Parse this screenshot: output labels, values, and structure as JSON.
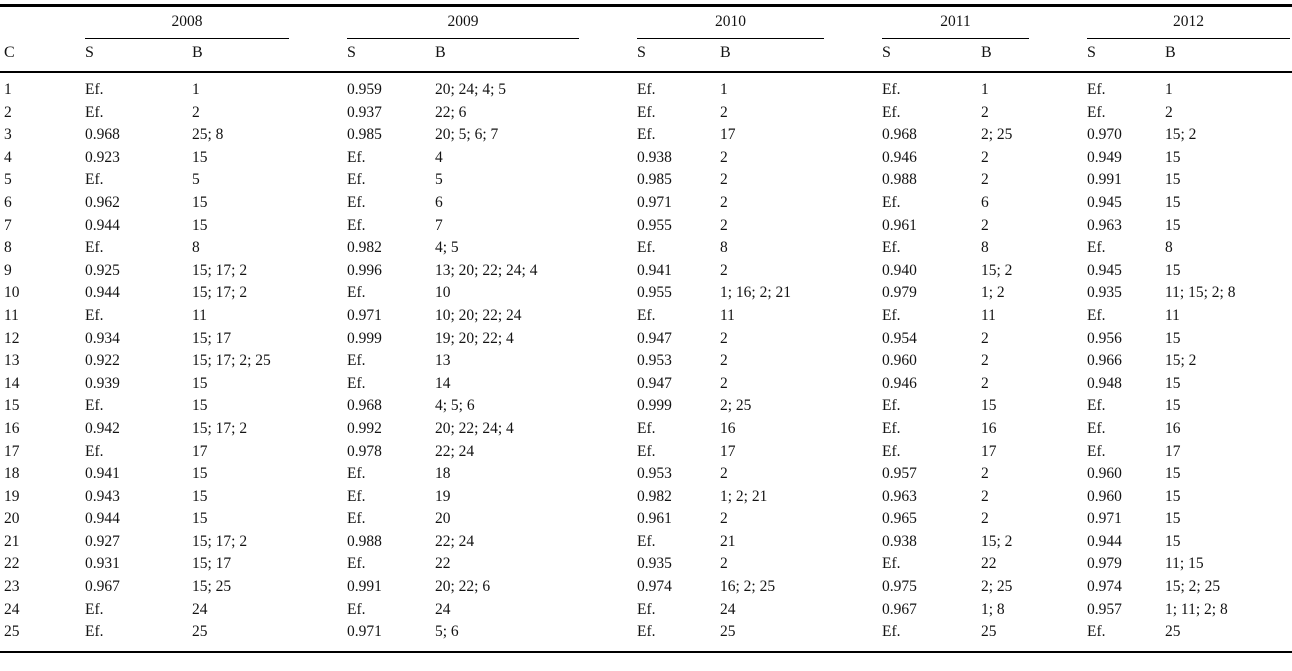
{
  "table": {
    "corner_header": "C",
    "years": [
      "2008",
      "2009",
      "2010",
      "2011",
      "2012"
    ],
    "sub_headers": {
      "s": "S",
      "b": "B"
    },
    "rows": [
      {
        "c": "1",
        "cells": [
          [
            "Ef.",
            "1"
          ],
          [
            "0.959",
            "20; 24; 4; 5"
          ],
          [
            "Ef.",
            "1"
          ],
          [
            "Ef.",
            "1"
          ],
          [
            "Ef.",
            "1"
          ]
        ]
      },
      {
        "c": "2",
        "cells": [
          [
            "Ef.",
            "2"
          ],
          [
            "0.937",
            "22; 6"
          ],
          [
            "Ef.",
            "2"
          ],
          [
            "Ef.",
            "2"
          ],
          [
            "Ef.",
            "2"
          ]
        ]
      },
      {
        "c": "3",
        "cells": [
          [
            "0.968",
            "25; 8"
          ],
          [
            "0.985",
            "20; 5; 6; 7"
          ],
          [
            "Ef.",
            "17"
          ],
          [
            "0.968",
            "2; 25"
          ],
          [
            "0.970",
            "15; 2"
          ]
        ]
      },
      {
        "c": "4",
        "cells": [
          [
            "0.923",
            "15"
          ],
          [
            "Ef.",
            "4"
          ],
          [
            "0.938",
            "2"
          ],
          [
            "0.946",
            "2"
          ],
          [
            "0.949",
            "15"
          ]
        ]
      },
      {
        "c": "5",
        "cells": [
          [
            "Ef.",
            "5"
          ],
          [
            "Ef.",
            "5"
          ],
          [
            "0.985",
            "2"
          ],
          [
            "0.988",
            "2"
          ],
          [
            "0.991",
            "15"
          ]
        ]
      },
      {
        "c": "6",
        "cells": [
          [
            "0.962",
            "15"
          ],
          [
            "Ef.",
            "6"
          ],
          [
            "0.971",
            "2"
          ],
          [
            "Ef.",
            "6"
          ],
          [
            "0.945",
            "15"
          ]
        ]
      },
      {
        "c": "7",
        "cells": [
          [
            "0.944",
            "15"
          ],
          [
            "Ef.",
            "7"
          ],
          [
            "0.955",
            "2"
          ],
          [
            "0.961",
            "2"
          ],
          [
            "0.963",
            "15"
          ]
        ]
      },
      {
        "c": "8",
        "cells": [
          [
            "Ef.",
            "8"
          ],
          [
            "0.982",
            "4; 5"
          ],
          [
            "Ef.",
            "8"
          ],
          [
            "Ef.",
            "8"
          ],
          [
            "Ef.",
            "8"
          ]
        ]
      },
      {
        "c": "9",
        "cells": [
          [
            "0.925",
            "15; 17; 2"
          ],
          [
            "0.996",
            "13; 20; 22; 24; 4"
          ],
          [
            "0.941",
            "2"
          ],
          [
            "0.940",
            "15; 2"
          ],
          [
            "0.945",
            "15"
          ]
        ]
      },
      {
        "c": "10",
        "cells": [
          [
            "0.944",
            "15; 17; 2"
          ],
          [
            "Ef.",
            "10"
          ],
          [
            "0.955",
            "1; 16; 2; 21"
          ],
          [
            "0.979",
            "1; 2"
          ],
          [
            "0.935",
            "11; 15; 2; 8"
          ]
        ]
      },
      {
        "c": "11",
        "cells": [
          [
            "Ef.",
            "11"
          ],
          [
            "0.971",
            "10; 20; 22; 24"
          ],
          [
            "Ef.",
            "11"
          ],
          [
            "Ef.",
            "11"
          ],
          [
            "Ef.",
            "11"
          ]
        ]
      },
      {
        "c": "12",
        "cells": [
          [
            "0.934",
            "15; 17"
          ],
          [
            "0.999",
            "19; 20; 22; 4"
          ],
          [
            "0.947",
            "2"
          ],
          [
            "0.954",
            "2"
          ],
          [
            "0.956",
            "15"
          ]
        ]
      },
      {
        "c": "13",
        "cells": [
          [
            "0.922",
            "15; 17; 2; 25"
          ],
          [
            "Ef.",
            "13"
          ],
          [
            "0.953",
            "2"
          ],
          [
            "0.960",
            "2"
          ],
          [
            "0.966",
            "15; 2"
          ]
        ]
      },
      {
        "c": "14",
        "cells": [
          [
            "0.939",
            "15"
          ],
          [
            "Ef.",
            "14"
          ],
          [
            "0.947",
            "2"
          ],
          [
            "0.946",
            "2"
          ],
          [
            "0.948",
            "15"
          ]
        ]
      },
      {
        "c": "15",
        "cells": [
          [
            "Ef.",
            "15"
          ],
          [
            "0.968",
            "4; 5; 6"
          ],
          [
            "0.999",
            "2; 25"
          ],
          [
            "Ef.",
            "15"
          ],
          [
            "Ef.",
            "15"
          ]
        ]
      },
      {
        "c": "16",
        "cells": [
          [
            "0.942",
            "15; 17; 2"
          ],
          [
            "0.992",
            "20; 22; 24; 4"
          ],
          [
            "Ef.",
            "16"
          ],
          [
            "Ef.",
            "16"
          ],
          [
            "Ef.",
            "16"
          ]
        ]
      },
      {
        "c": "17",
        "cells": [
          [
            "Ef.",
            "17"
          ],
          [
            "0.978",
            "22; 24"
          ],
          [
            "Ef.",
            "17"
          ],
          [
            "Ef.",
            "17"
          ],
          [
            "Ef.",
            "17"
          ]
        ]
      },
      {
        "c": "18",
        "cells": [
          [
            "0.941",
            "15"
          ],
          [
            "Ef.",
            "18"
          ],
          [
            "0.953",
            "2"
          ],
          [
            "0.957",
            "2"
          ],
          [
            "0.960",
            "15"
          ]
        ]
      },
      {
        "c": "19",
        "cells": [
          [
            "0.943",
            "15"
          ],
          [
            "Ef.",
            "19"
          ],
          [
            "0.982",
            "1; 2; 21"
          ],
          [
            "0.963",
            "2"
          ],
          [
            "0.960",
            "15"
          ]
        ]
      },
      {
        "c": "20",
        "cells": [
          [
            "0.944",
            "15"
          ],
          [
            "Ef.",
            "20"
          ],
          [
            "0.961",
            "2"
          ],
          [
            "0.965",
            "2"
          ],
          [
            "0.971",
            "15"
          ]
        ]
      },
      {
        "c": "21",
        "cells": [
          [
            "0.927",
            "15; 17; 2"
          ],
          [
            "0.988",
            "22; 24"
          ],
          [
            "Ef.",
            "21"
          ],
          [
            "0.938",
            "15; 2"
          ],
          [
            "0.944",
            "15"
          ]
        ]
      },
      {
        "c": "22",
        "cells": [
          [
            "0.931",
            "15; 17"
          ],
          [
            "Ef.",
            "22"
          ],
          [
            "0.935",
            "2"
          ],
          [
            "Ef.",
            "22"
          ],
          [
            "0.979",
            "11; 15"
          ]
        ]
      },
      {
        "c": "23",
        "cells": [
          [
            "0.967",
            "15; 25"
          ],
          [
            "0.991",
            "20; 22; 6"
          ],
          [
            "0.974",
            "16; 2; 25"
          ],
          [
            "0.975",
            "2; 25"
          ],
          [
            "0.974",
            "15; 2; 25"
          ]
        ]
      },
      {
        "c": "24",
        "cells": [
          [
            "Ef.",
            "24"
          ],
          [
            "Ef.",
            "24"
          ],
          [
            "Ef.",
            "24"
          ],
          [
            "0.967",
            "1; 8"
          ],
          [
            "0.957",
            "1; 11; 2; 8"
          ]
        ]
      },
      {
        "c": "25",
        "cells": [
          [
            "Ef.",
            "25"
          ],
          [
            "0.971",
            "5; 6"
          ],
          [
            "Ef.",
            "25"
          ],
          [
            "Ef.",
            "25"
          ],
          [
            "Ef.",
            "25"
          ]
        ]
      }
    ]
  }
}
